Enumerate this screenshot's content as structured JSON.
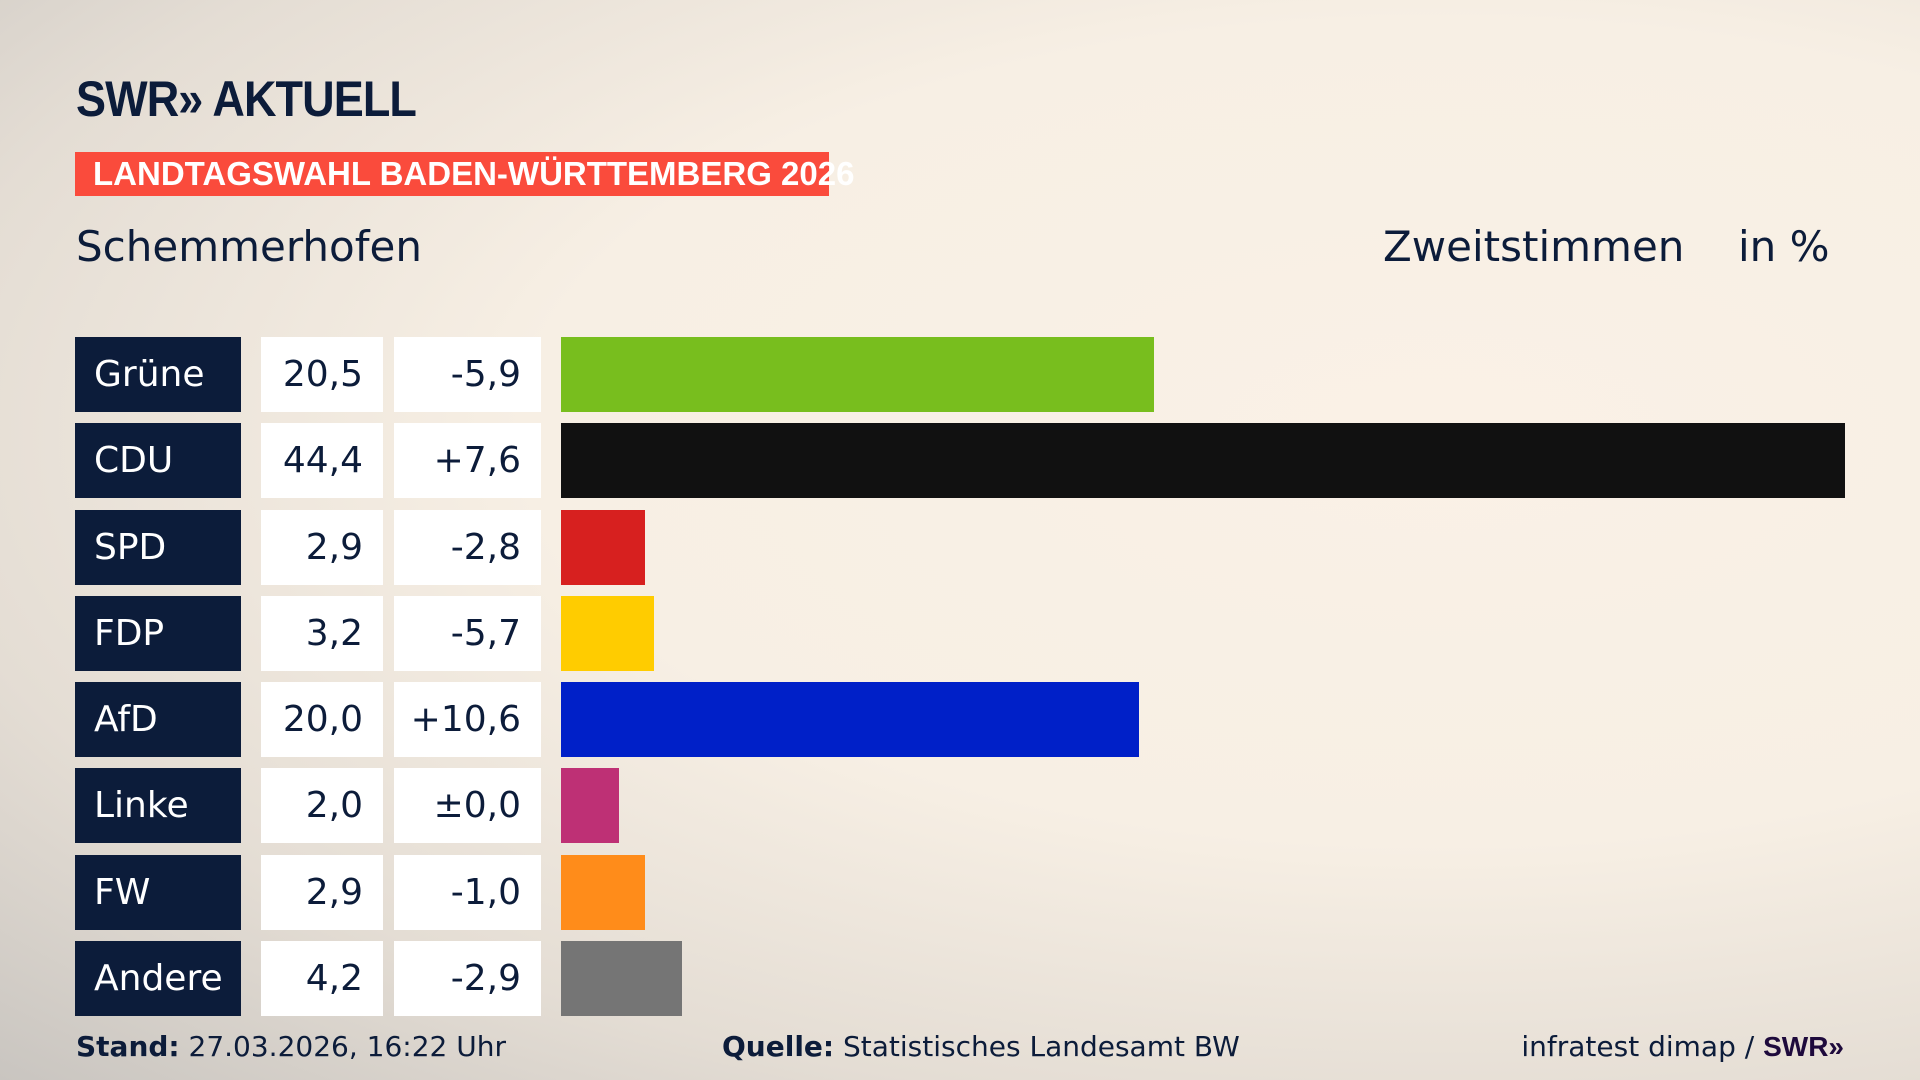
{
  "header": {
    "logo": "SWR» AKTUELL",
    "banner": "LANDTAGSWAHL BADEN-WÜRTTEMBERG 2026",
    "banner_color": "#fa4b3c",
    "region": "Schemmerhofen",
    "metric": "Zweitstimmen",
    "unit": "in %"
  },
  "chart_data": {
    "type": "bar",
    "orientation": "horizontal",
    "title": "Zweitstimmen",
    "categories": [
      "Grüne",
      "CDU",
      "SPD",
      "FDP",
      "AfD",
      "Linke",
      "FW",
      "Andere"
    ],
    "values": [
      20.5,
      44.4,
      2.9,
      3.2,
      20.0,
      2.0,
      2.9,
      4.2
    ],
    "value_labels": [
      "20,5",
      "44,4",
      "2,9",
      "3,2",
      "20,0",
      "2,0",
      "2,9",
      "4,2"
    ],
    "diff_labels": [
      "-5,9",
      "+7,6",
      "-2,8",
      "-5,7",
      "+10,6",
      "±0,0",
      "-1,0",
      "-2,9"
    ],
    "diffs": [
      -5.9,
      7.6,
      -2.8,
      -5.7,
      10.6,
      0.0,
      -1.0,
      -2.9
    ],
    "colors": [
      "#78be1e",
      "#111111",
      "#d7201f",
      "#ffcc00",
      "#0020c8",
      "#be3075",
      "#ff8c1a",
      "#757575"
    ],
    "xlim": [
      0,
      44.4
    ],
    "grid": false
  },
  "footer": {
    "stand_label": "Stand:",
    "stand_value": " 27.03.2026, 16:22 Uhr",
    "source_label": "Quelle:",
    "source_value": " Statistisches Landesamt BW",
    "credit": "infratest dimap / ",
    "credit_logo": "SWR»"
  }
}
